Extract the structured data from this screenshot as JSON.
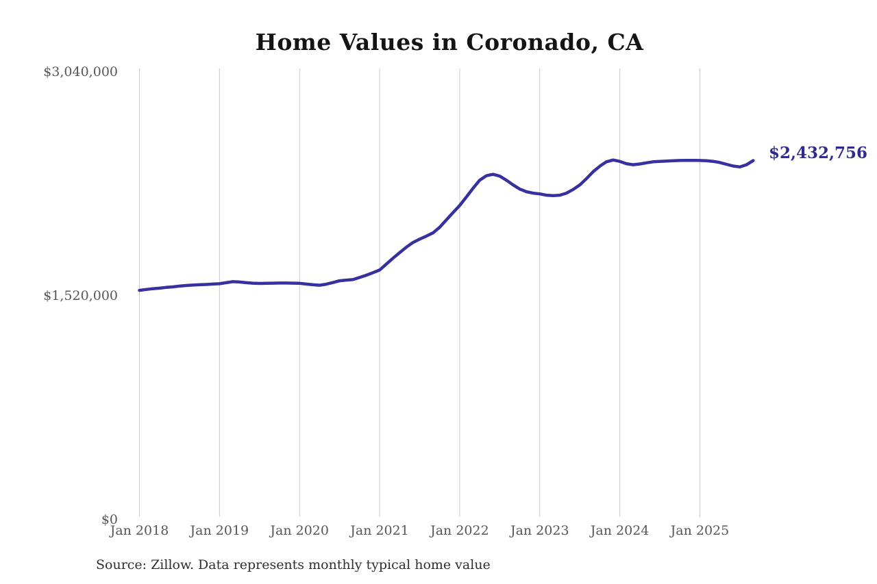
{
  "chart_data": {
    "type": "line",
    "title": "Home Values in Coronado, CA",
    "xlabel": "",
    "ylabel": "",
    "ylim": [
      0,
      3040000
    ],
    "grid": "vertical-only",
    "legend": "none",
    "y_ticks": [
      {
        "label": "$3,040,000",
        "value": 3040000
      },
      {
        "label": "$1,520,000",
        "value": 1520000
      },
      {
        "label": "$0",
        "value": 0
      }
    ],
    "x_ticks": [
      "Jan 2018",
      "Jan 2019",
      "Jan 2020",
      "Jan 2021",
      "Jan 2022",
      "Jan 2023",
      "Jan 2024",
      "Jan 2025"
    ],
    "series": [
      {
        "name": "Monthly typical home value",
        "color": "#37319f",
        "x": [
          "2018-01",
          "2018-02",
          "2018-03",
          "2018-04",
          "2018-05",
          "2018-06",
          "2018-07",
          "2018-08",
          "2018-09",
          "2018-10",
          "2018-11",
          "2018-12",
          "2019-01",
          "2019-02",
          "2019-03",
          "2019-04",
          "2019-05",
          "2019-06",
          "2019-07",
          "2019-08",
          "2019-09",
          "2019-10",
          "2019-11",
          "2019-12",
          "2020-01",
          "2020-02",
          "2020-03",
          "2020-04",
          "2020-05",
          "2020-06",
          "2020-07",
          "2020-08",
          "2020-09",
          "2020-10",
          "2020-11",
          "2020-12",
          "2021-01",
          "2021-02",
          "2021-03",
          "2021-04",
          "2021-05",
          "2021-06",
          "2021-07",
          "2021-08",
          "2021-09",
          "2021-10",
          "2021-11",
          "2021-12",
          "2022-01",
          "2022-02",
          "2022-03",
          "2022-04",
          "2022-05",
          "2022-06",
          "2022-07",
          "2022-08",
          "2022-09",
          "2022-10",
          "2022-11",
          "2022-12",
          "2023-01",
          "2023-02",
          "2023-03",
          "2023-04",
          "2023-05",
          "2023-06",
          "2023-07",
          "2023-08",
          "2023-09",
          "2023-10",
          "2023-11",
          "2023-12",
          "2024-01",
          "2024-02",
          "2024-03",
          "2024-04",
          "2024-05",
          "2024-06",
          "2024-07",
          "2024-08",
          "2024-09",
          "2024-10",
          "2024-11",
          "2024-12",
          "2025-01",
          "2025-02",
          "2025-03",
          "2025-04",
          "2025-05",
          "2025-06",
          "2025-07",
          "2025-08",
          "2025-09"
        ],
        "values": [
          1552000,
          1558000,
          1563000,
          1567000,
          1572000,
          1576000,
          1581000,
          1585000,
          1588000,
          1590000,
          1592000,
          1595000,
          1597000,
          1604000,
          1611000,
          1609000,
          1604000,
          1601000,
          1599000,
          1600000,
          1601000,
          1602000,
          1602000,
          1601000,
          1600000,
          1595000,
          1590000,
          1587000,
          1594000,
          1605000,
          1617000,
          1622000,
          1625000,
          1640000,
          1655000,
          1672000,
          1690000,
          1730000,
          1770000,
          1808000,
          1845000,
          1877000,
          1900000,
          1920000,
          1942000,
          1980000,
          2030000,
          2080000,
          2128000,
          2185000,
          2245000,
          2300000,
          2330000,
          2340000,
          2328000,
          2300000,
          2268000,
          2240000,
          2222000,
          2212000,
          2207000,
          2198000,
          2195000,
          2198000,
          2212000,
          2237000,
          2268000,
          2310000,
          2357000,
          2395000,
          2425000,
          2437000,
          2428000,
          2412000,
          2405000,
          2410000,
          2418000,
          2425000,
          2428000,
          2430000,
          2432000,
          2434000,
          2435000,
          2435000,
          2434000,
          2432000,
          2428000,
          2420000,
          2408000,
          2396000,
          2390000,
          2405000,
          2432756
        ]
      }
    ],
    "last_point_label": "$2,432,756",
    "last_point_value": 2432756,
    "source": "Source: Zillow. Data represents monthly typical home value"
  },
  "colors": {
    "line": "#37319f",
    "end_label": "#302a90",
    "gridline": "#cbcbcb",
    "tick_text": "#565656",
    "title_text": "#141414",
    "source_text": "#2e2e2e",
    "background": "#ffffff"
  }
}
